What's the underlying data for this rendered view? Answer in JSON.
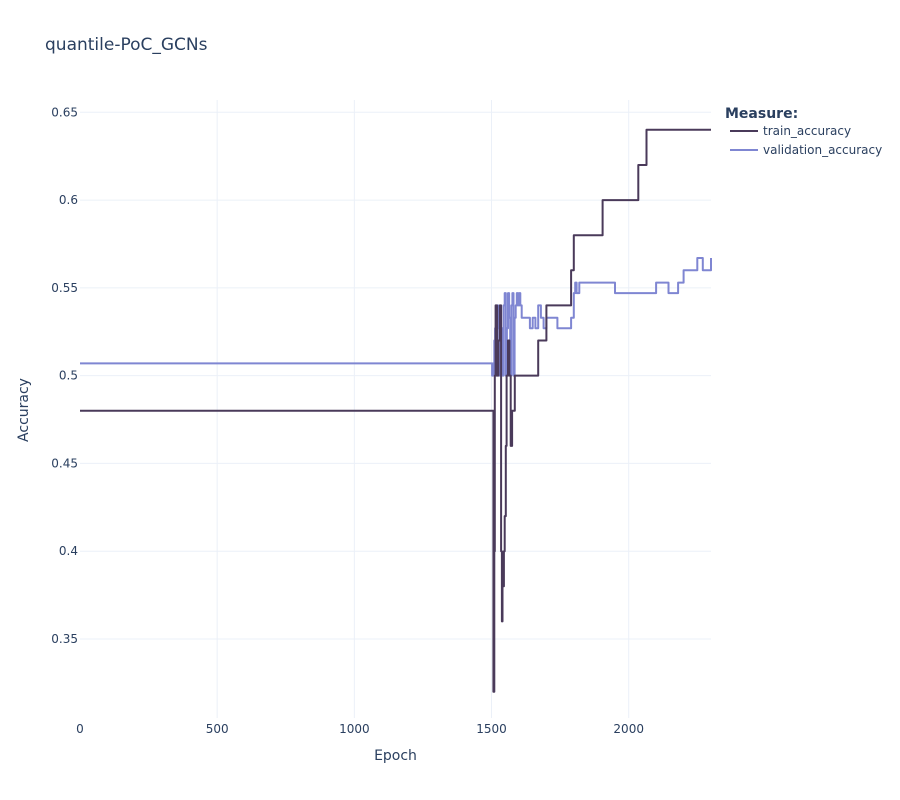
{
  "chart_data": {
    "type": "line",
    "title": "quantile-PoC_GCNs",
    "xlabel": "Epoch",
    "ylabel": "Accuracy",
    "xlim": [
      0,
      2300
    ],
    "ylim": [
      0.305,
      0.657
    ],
    "xticks": [
      0,
      500,
      1000,
      1500,
      2000
    ],
    "xtick_labels": [
      "0",
      "500",
      "1000",
      "1500",
      "2000"
    ],
    "yticks": [
      0.35,
      0.4,
      0.45,
      0.5,
      0.55,
      0.6,
      0.65
    ],
    "ytick_labels": [
      "0.35",
      "0.4",
      "0.45",
      "0.5",
      "0.55",
      "0.6",
      "0.65"
    ],
    "grid": true,
    "legend": {
      "title": "Measure:",
      "placement": "right"
    },
    "series": [
      {
        "name": "train_accuracy",
        "color": "#4a3a5a",
        "x": [
          0,
          1505,
          1507,
          1510,
          1512,
          1515,
          1520,
          1525,
          1530,
          1535,
          1538,
          1540,
          1545,
          1548,
          1552,
          1555,
          1560,
          1565,
          1570,
          1575,
          1580,
          1585,
          1590,
          1600,
          1610,
          1620,
          1640,
          1660,
          1670,
          1690,
          1700,
          1720,
          1750,
          1780,
          1790,
          1800,
          1850,
          1900,
          1905,
          1950,
          2000,
          2030,
          2035,
          2060,
          2065,
          2100,
          2200,
          2300
        ],
        "y": [
          0.48,
          0.48,
          0.32,
          0.4,
          0.5,
          0.54,
          0.5,
          0.52,
          0.54,
          0.4,
          0.36,
          0.38,
          0.4,
          0.42,
          0.46,
          0.5,
          0.52,
          0.5,
          0.46,
          0.48,
          0.48,
          0.5,
          0.5,
          0.5,
          0.5,
          0.5,
          0.5,
          0.5,
          0.52,
          0.52,
          0.54,
          0.54,
          0.54,
          0.54,
          0.56,
          0.58,
          0.58,
          0.58,
          0.6,
          0.6,
          0.6,
          0.6,
          0.62,
          0.62,
          0.64,
          0.64,
          0.64,
          0.64
        ]
      },
      {
        "name": "validation_accuracy",
        "color": "#7f86d2",
        "x": [
          0,
          1500,
          1502,
          1505,
          1508,
          1510,
          1513,
          1516,
          1520,
          1524,
          1528,
          1532,
          1536,
          1540,
          1544,
          1548,
          1552,
          1556,
          1560,
          1564,
          1568,
          1572,
          1576,
          1580,
          1584,
          1588,
          1592,
          1596,
          1600,
          1605,
          1610,
          1620,
          1640,
          1650,
          1660,
          1670,
          1680,
          1690,
          1700,
          1720,
          1740,
          1760,
          1780,
          1790,
          1800,
          1805,
          1810,
          1820,
          1850,
          1880,
          1900,
          1950,
          2000,
          2050,
          2100,
          2140,
          2145,
          2180,
          2200,
          2230,
          2250,
          2270,
          2300
        ],
        "y": [
          0.507,
          0.507,
          0.5,
          0.507,
          0.5,
          0.52,
          0.527,
          0.5,
          0.54,
          0.527,
          0.5,
          0.52,
          0.527,
          0.5,
          0.54,
          0.547,
          0.5,
          0.527,
          0.547,
          0.533,
          0.5,
          0.54,
          0.547,
          0.5,
          0.533,
          0.54,
          0.547,
          0.54,
          0.547,
          0.54,
          0.533,
          0.533,
          0.527,
          0.533,
          0.527,
          0.54,
          0.533,
          0.527,
          0.533,
          0.533,
          0.527,
          0.527,
          0.527,
          0.533,
          0.547,
          0.553,
          0.547,
          0.553,
          0.553,
          0.553,
          0.553,
          0.547,
          0.547,
          0.547,
          0.553,
          0.553,
          0.547,
          0.553,
          0.56,
          0.56,
          0.567,
          0.56,
          0.567
        ]
      }
    ]
  }
}
